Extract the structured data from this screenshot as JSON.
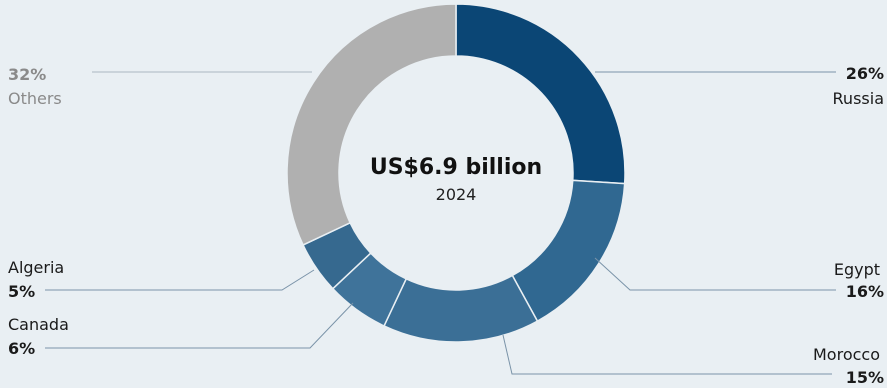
{
  "chart_data": {
    "type": "pie",
    "style": "donut",
    "center_total": "US$6.9 billion",
    "center_year": "2024",
    "slices": [
      {
        "label": "Russia",
        "value": 26,
        "value_label": "26%",
        "color": "#0b4675"
      },
      {
        "label": "Egypt",
        "value": 16,
        "value_label": "16%",
        "color": "#306891"
      },
      {
        "label": "Morocco",
        "value": 15,
        "value_label": "15%",
        "color": "#3b6f96"
      },
      {
        "label": "Canada",
        "value": 6,
        "value_label": "6%",
        "color": "#3f739a"
      },
      {
        "label": "Algeria",
        "value": 5,
        "value_label": "5%",
        "color": "#36698f"
      },
      {
        "label": "Others",
        "value": 32,
        "value_label": "32%",
        "color": "#b0b0b0"
      }
    ]
  },
  "colors": {
    "background": "#e9eff3",
    "leader": "#7a93a8",
    "muted_text": "#8a8a8a"
  }
}
